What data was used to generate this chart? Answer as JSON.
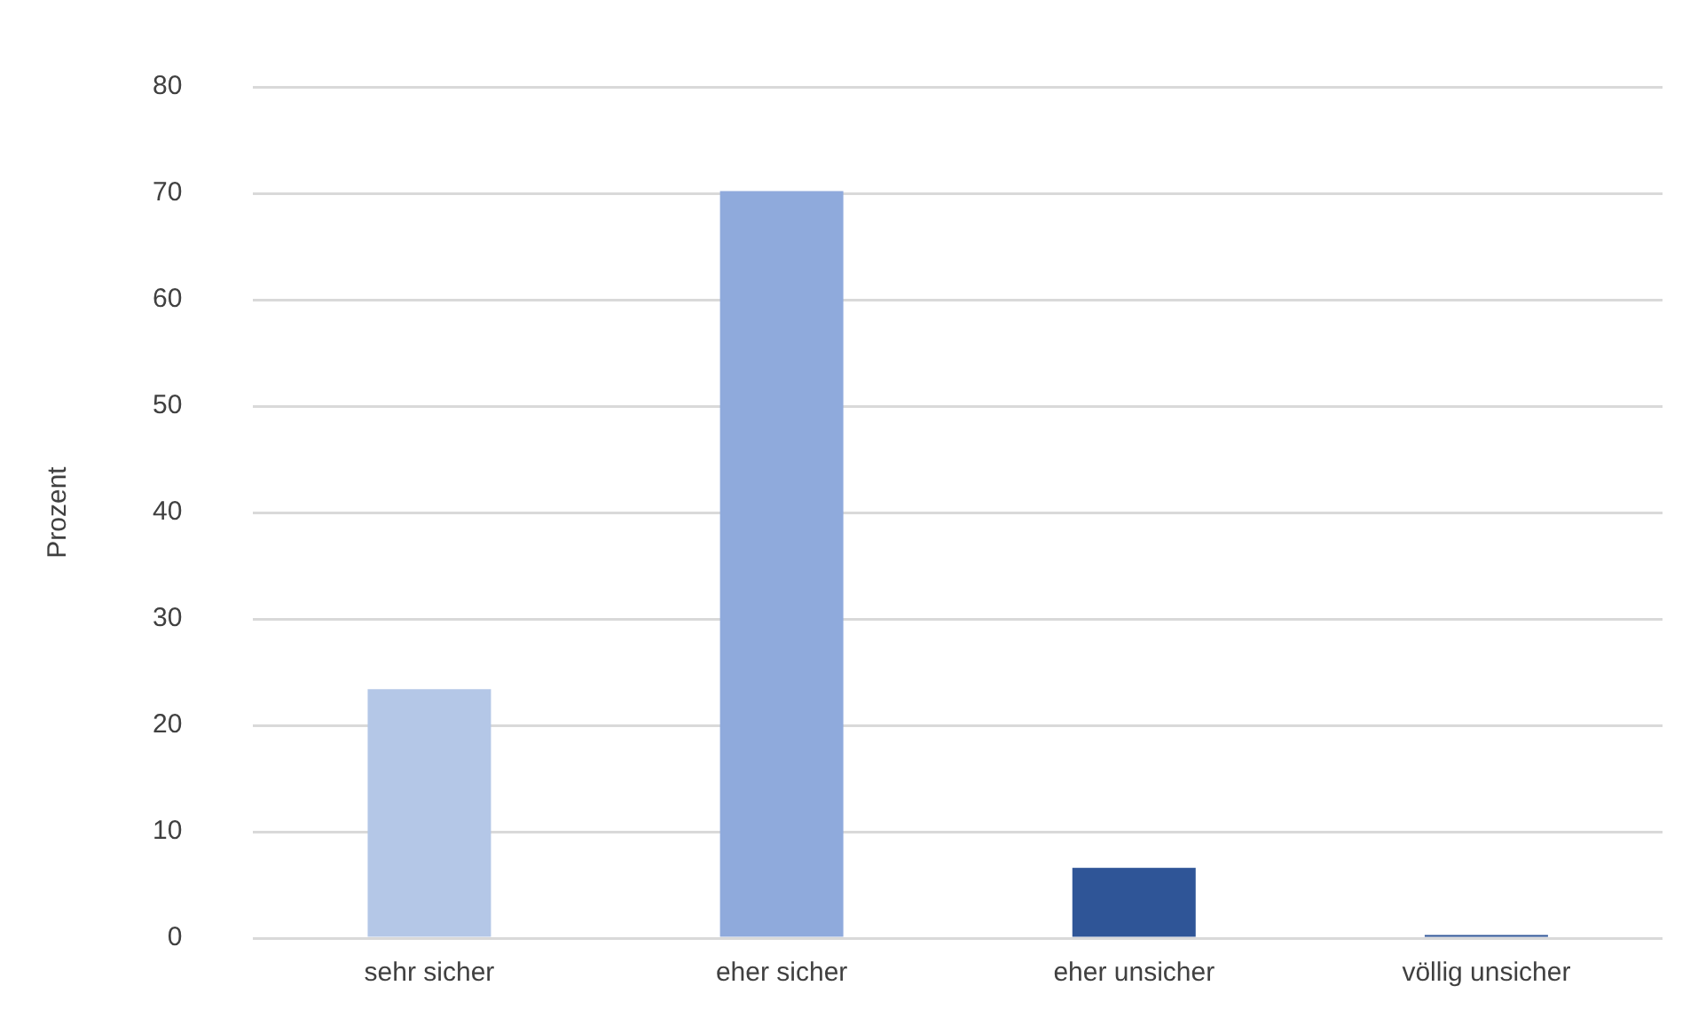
{
  "chart_data": {
    "type": "bar",
    "ylabel": "Prozent",
    "categories": [
      "sehr sicher",
      "eher sicher",
      "eher unsicher",
      "völlig unsicher"
    ],
    "values": [
      23.4,
      70.2,
      6.6,
      0.3
    ],
    "colors": [
      "#b4c7e7",
      "#8faadc",
      "#2f5597",
      "#2f5597"
    ],
    "ylim": [
      0,
      80
    ],
    "yticks": [
      0,
      10,
      20,
      30,
      40,
      50,
      60,
      70,
      80
    ],
    "grid": "y"
  }
}
